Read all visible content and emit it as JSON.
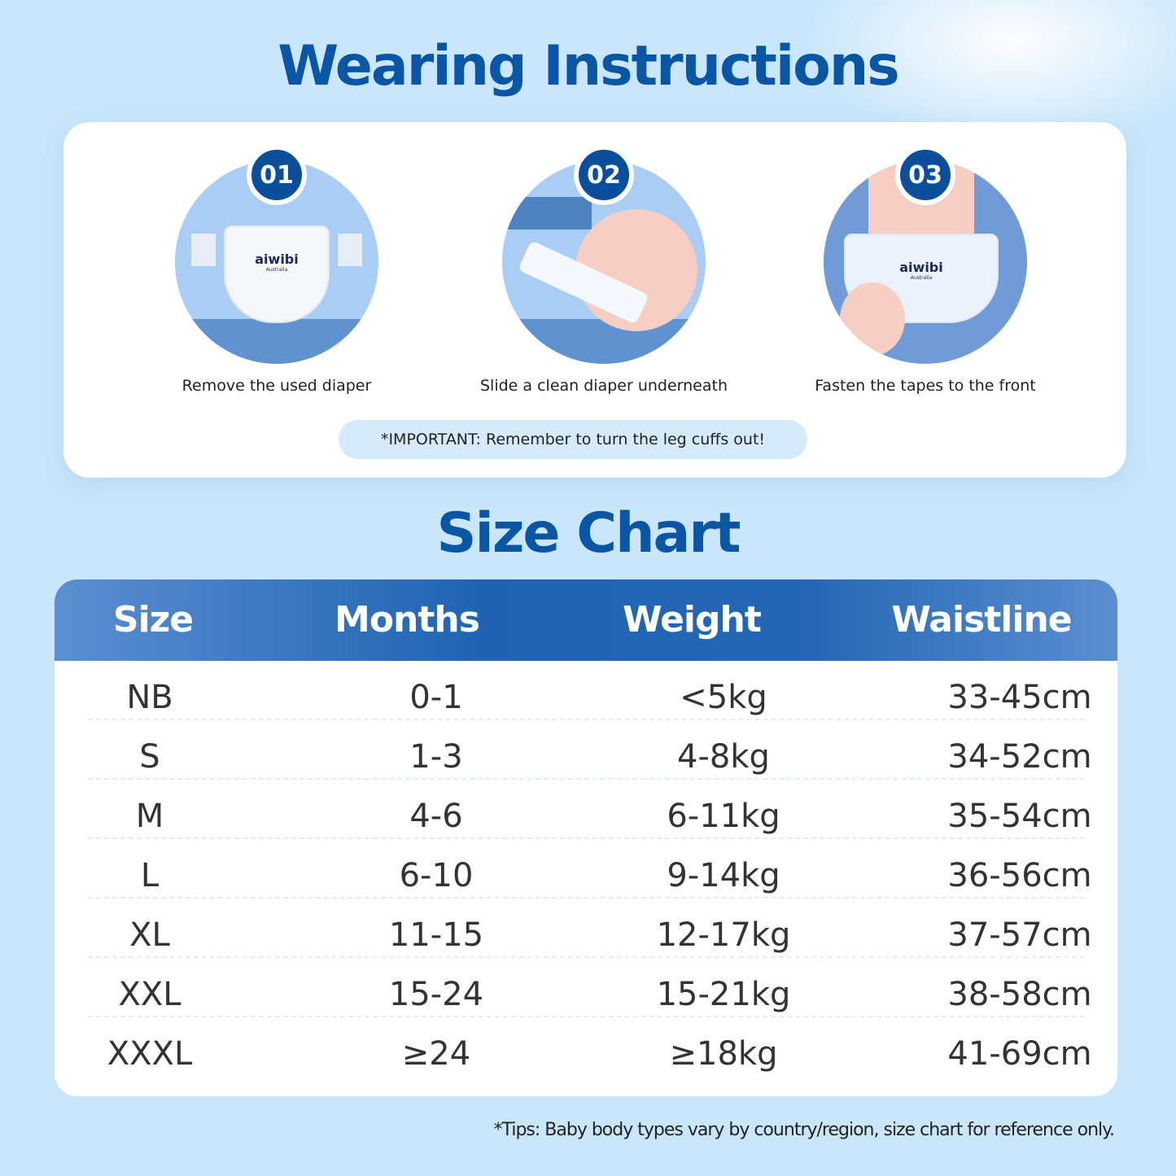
{
  "instructions": {
    "title": "Wearing Instructions",
    "steps": [
      {
        "number": "01",
        "caption": "Remove the used diaper",
        "logo": "aiwibi",
        "logo_sub": "Australia"
      },
      {
        "number": "02",
        "caption": "Slide a clean diaper underneath"
      },
      {
        "number": "03",
        "caption": "Fasten the tapes to the front",
        "logo": "aiwibi",
        "logo_sub": "Australia"
      }
    ],
    "important": "*IMPORTANT: Remember to turn the leg cuffs out!"
  },
  "size_chart": {
    "title": "Size Chart",
    "headers": [
      "Size",
      "Months",
      "Weight",
      "Waistline"
    ],
    "rows": [
      [
        "NB",
        "0-1",
        "<5kg",
        "33-45cm"
      ],
      [
        "S",
        "1-3",
        "4-8kg",
        "34-52cm"
      ],
      [
        "M",
        "4-6",
        "6-11kg",
        "35-54cm"
      ],
      [
        "L",
        "6-10",
        "9-14kg",
        "36-56cm"
      ],
      [
        "XL",
        "11-15",
        "12-17kg",
        "37-57cm"
      ],
      [
        "XXL",
        "15-24",
        "15-21kg",
        "38-58cm"
      ],
      [
        "XXXL",
        "≥24",
        "≥18kg",
        "41-69cm"
      ]
    ],
    "tips": "*Tips: Baby body types vary by country/region,  size chart for reference only."
  },
  "colors": {
    "brand": "#0a56a6",
    "header": "#2366b4",
    "background": "#c9e6fb"
  }
}
